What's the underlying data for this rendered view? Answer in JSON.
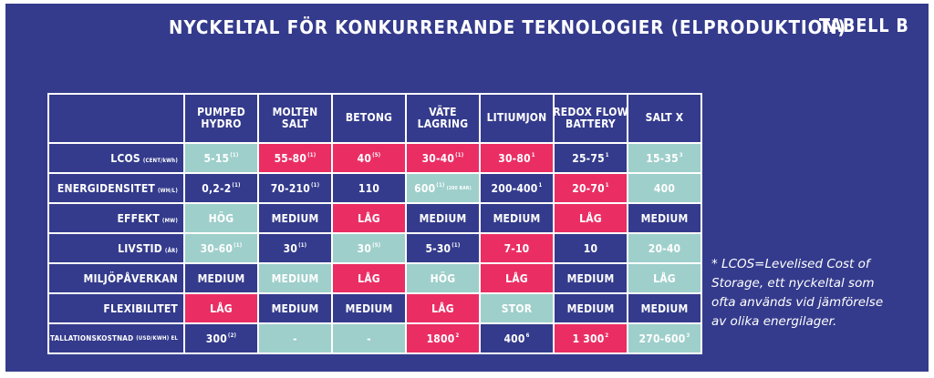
{
  "title": "NYCKELTAL FÖR KONKURRERANDE TEKNOLOGIER (ELPRODUKTION)",
  "table_tag": "TABELL B",
  "colors": {
    "background": "#343b8c",
    "teal": "#9ecfcb",
    "pink": "#ea2e64",
    "navy": "#343b8c"
  },
  "columns": [
    [
      "PUMPED",
      "HYDRO"
    ],
    [
      "MOLTEN",
      "SALT"
    ],
    [
      "BETONG"
    ],
    [
      "VÄTE",
      "LAGRING"
    ],
    [
      "LITIUMJON"
    ],
    [
      "REDOX FLOW",
      "BATTERY"
    ],
    [
      "SALT X"
    ]
  ],
  "rows": [
    {
      "label": "LCOS",
      "unit": "(CENT/kWh)",
      "cells": [
        {
          "v": "5-15",
          "s": "(1)",
          "c": "teal"
        },
        {
          "v": "55-80",
          "s": "(1)",
          "c": "pink"
        },
        {
          "v": "40",
          "s": "(5)",
          "c": "pink"
        },
        {
          "v": "30-40",
          "s": "(1)",
          "c": "pink"
        },
        {
          "v": "30-80",
          "s": "1",
          "c": "pink"
        },
        {
          "v": "25-75",
          "s": "1",
          "c": "navy"
        },
        {
          "v": "15-35",
          "s": "3",
          "c": "teal"
        }
      ]
    },
    {
      "label": "ENERGIDENSITET",
      "unit": "(WH/L)",
      "cells": [
        {
          "v": "0,2-2",
          "s": "(1)",
          "c": "navy"
        },
        {
          "v": "70-210",
          "s": "(1)",
          "c": "navy"
        },
        {
          "v": "110",
          "s": "",
          "c": "navy"
        },
        {
          "v": "600",
          "s": "(1)",
          "t": "(200 BAR)",
          "c": "teal"
        },
        {
          "v": "200-400",
          "s": "1",
          "c": "navy"
        },
        {
          "v": "20-70",
          "s": "1",
          "c": "pink"
        },
        {
          "v": "400",
          "s": "",
          "c": "teal"
        }
      ]
    },
    {
      "label": "EFFEKT",
      "unit": "(MW)",
      "cells": [
        {
          "v": "HÖG",
          "s": "",
          "c": "teal"
        },
        {
          "v": "MEDIUM",
          "s": "",
          "c": "navy"
        },
        {
          "v": "LÅG",
          "s": "",
          "c": "pink"
        },
        {
          "v": "MEDIUM",
          "s": "",
          "c": "navy"
        },
        {
          "v": "MEDIUM",
          "s": "",
          "c": "navy"
        },
        {
          "v": "LÅG",
          "s": "",
          "c": "pink"
        },
        {
          "v": "MEDIUM",
          "s": "",
          "c": "navy"
        }
      ]
    },
    {
      "label": "LIVSTID",
      "unit": "(ÅR)",
      "cells": [
        {
          "v": "30-60",
          "s": "(1)",
          "c": "teal"
        },
        {
          "v": "30",
          "s": "(1)",
          "c": "navy"
        },
        {
          "v": "30",
          "s": "(5)",
          "c": "teal"
        },
        {
          "v": "5-30",
          "s": "(1)",
          "c": "navy"
        },
        {
          "v": "7-10",
          "s": "",
          "c": "pink"
        },
        {
          "v": "10",
          "s": "",
          "c": "navy"
        },
        {
          "v": "20-40",
          "s": "",
          "c": "teal"
        }
      ]
    },
    {
      "label": "MILJÖPÅVERKAN",
      "unit": "",
      "cells": [
        {
          "v": "MEDIUM",
          "s": "",
          "c": "navy"
        },
        {
          "v": "MEDIUM",
          "s": "",
          "c": "teal"
        },
        {
          "v": "LÅG",
          "s": "",
          "c": "pink"
        },
        {
          "v": "HÖG",
          "s": "",
          "c": "teal"
        },
        {
          "v": "LÅG",
          "s": "",
          "c": "pink"
        },
        {
          "v": "MEDIUM",
          "s": "",
          "c": "navy"
        },
        {
          "v": "LÅG",
          "s": "",
          "c": "teal"
        }
      ]
    },
    {
      "label": "FLEXIBILITET",
      "unit": "",
      "cells": [
        {
          "v": "LÅG",
          "s": "",
          "c": "pink"
        },
        {
          "v": "MEDIUM",
          "s": "",
          "c": "navy"
        },
        {
          "v": "MEDIUM",
          "s": "",
          "c": "navy"
        },
        {
          "v": "LÅG",
          "s": "",
          "c": "pink"
        },
        {
          "v": "STOR",
          "s": "",
          "c": "teal"
        },
        {
          "v": "MEDIUM",
          "s": "",
          "c": "navy"
        },
        {
          "v": "MEDIUM",
          "s": "",
          "c": "navy"
        }
      ]
    },
    {
      "label": "INSTALLATIONSKOSTNAD",
      "unit": "(USD/KWH) EL",
      "small": true,
      "cells": [
        {
          "v": "300",
          "s": "(2)",
          "c": "navy"
        },
        {
          "v": "-",
          "s": "",
          "c": "teal"
        },
        {
          "v": "-",
          "s": "",
          "c": "teal"
        },
        {
          "v": "1800",
          "s": "2",
          "c": "pink"
        },
        {
          "v": "400",
          "s": "6",
          "c": "navy"
        },
        {
          "v": "1 300",
          "s": "2",
          "c": "pink"
        },
        {
          "v": "270-600",
          "s": "3",
          "c": "teal"
        }
      ]
    }
  ],
  "footnote": "* LCOS=Levelised Cost of Storage, ett nyckeltal som ofta används vid jämförelse av olika energilager."
}
